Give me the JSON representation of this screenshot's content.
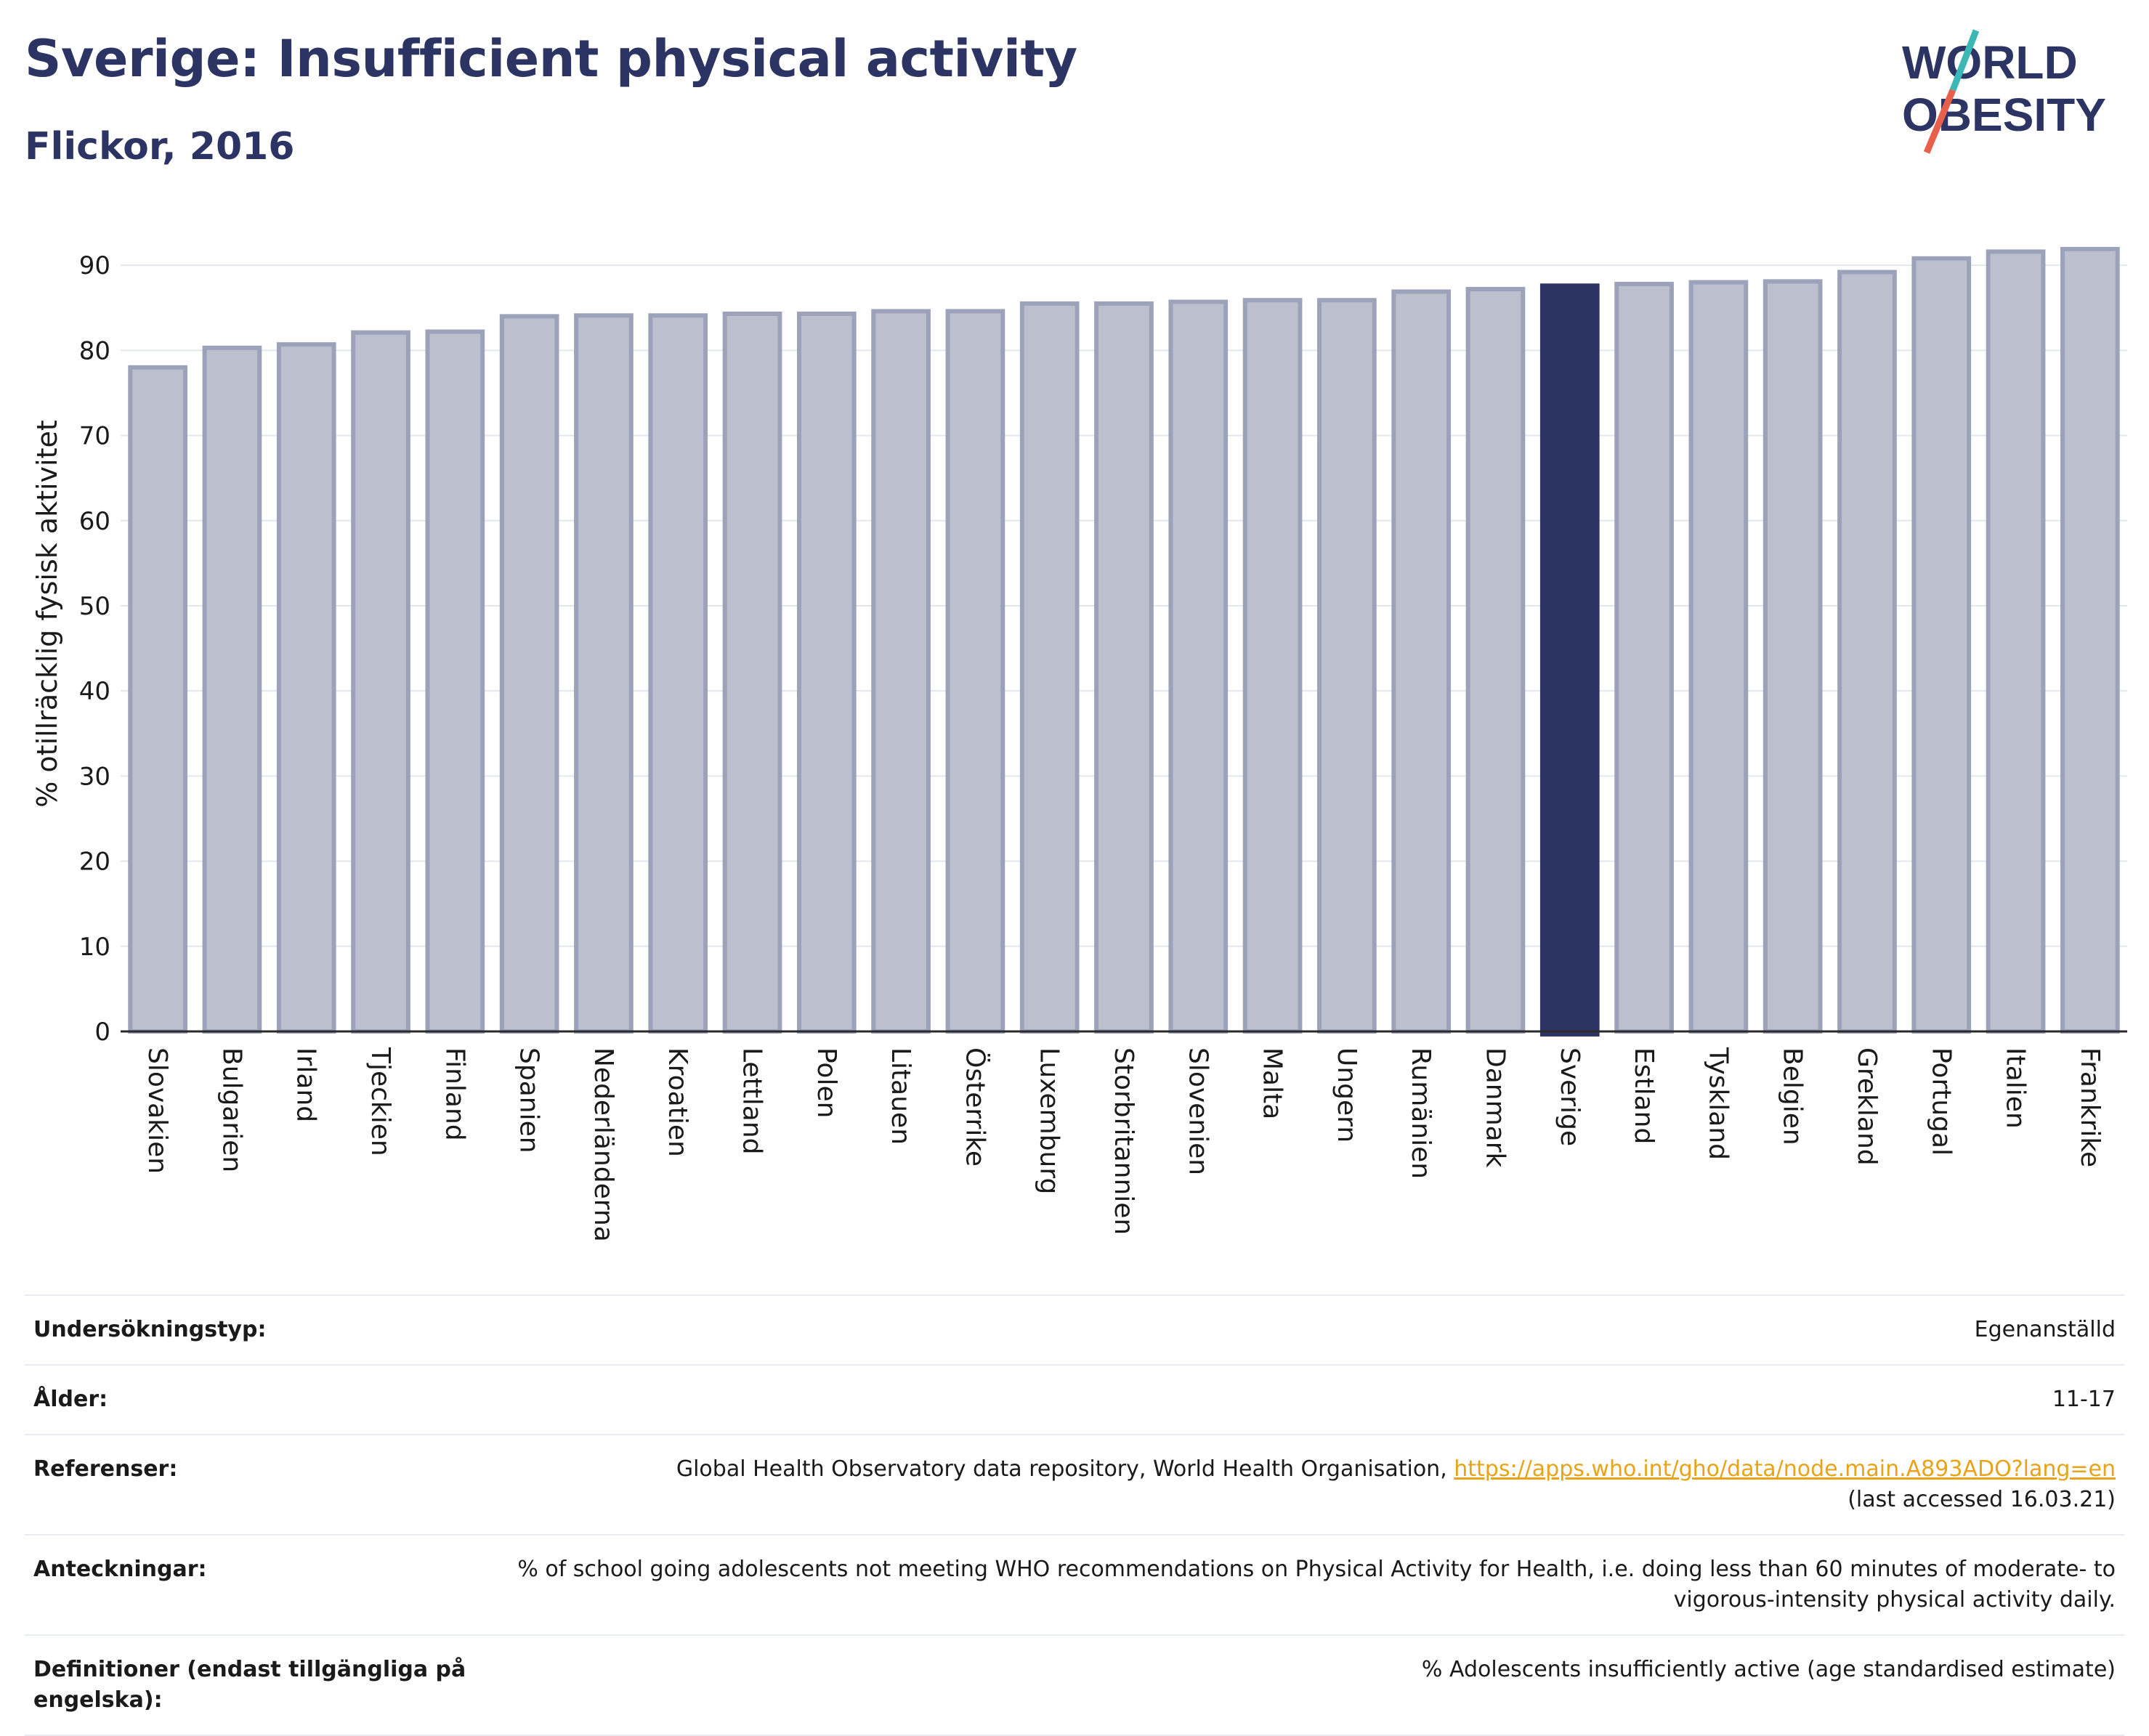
{
  "header": {
    "title": "Sverige: Insufficient physical activity",
    "subtitle": "Flickor, 2016",
    "logo_line1": "WORLD",
    "logo_line2": "OBESITY"
  },
  "colors": {
    "bar": "#bcc0ce",
    "bar_stroke": "#9ca2b9",
    "highlight": "#2b3463",
    "title": "#2b3463",
    "link": "#e8a318",
    "logo_slash_top": "#3bb8b6",
    "logo_slash_bottom": "#e8604c"
  },
  "chart_data": {
    "type": "bar",
    "title": "",
    "xlabel": "",
    "ylabel": "% otillräcklig fysisk aktivitet",
    "ylim": [
      0,
      93
    ],
    "yticks": [
      0,
      10,
      20,
      30,
      40,
      50,
      60,
      70,
      80,
      90
    ],
    "grid": true,
    "highlight": "Sverige",
    "categories": [
      "Slovakien",
      "Bulgarien",
      "Irland",
      "Tjeckien",
      "Finland",
      "Spanien",
      "Nederländerna",
      "Kroatien",
      "Lettland",
      "Polen",
      "Litauen",
      "Österrike",
      "Luxemburg",
      "Storbritannien",
      "Slovenien",
      "Malta",
      "Ungern",
      "Rumänien",
      "Danmark",
      "Sverige",
      "Estland",
      "Tyskland",
      "Belgien",
      "Grekland",
      "Portugal",
      "Italien",
      "Frankrike"
    ],
    "values": [
      78.0,
      80.3,
      80.7,
      82.1,
      82.2,
      84.0,
      84.1,
      84.1,
      84.3,
      84.3,
      84.6,
      84.6,
      85.5,
      85.5,
      85.7,
      85.9,
      85.9,
      86.9,
      87.2,
      87.6,
      87.8,
      88.0,
      88.1,
      89.2,
      90.8,
      91.6,
      91.9
    ]
  },
  "meta": [
    {
      "key": "Undersökningstyp:",
      "value": "Egenanställd"
    },
    {
      "key": "Ålder:",
      "value": "11-17"
    },
    {
      "key": "Referenser:",
      "value": "Global Health Observatory data repository, World Health Organisation, ",
      "link": "https://apps.who.int/gho/data/node.main.A893ADO?lang=en",
      "value2": "(last accessed 16.03.21)"
    },
    {
      "key": "Anteckningar:",
      "value": "% of school going adolescents not meeting WHO recommendations on Physical Activity for Health, i.e. doing less than 60 minutes of moderate- to vigorous-intensity physical activity daily."
    },
    {
      "key": "Definitioner (endast tillgängliga på engelska):",
      "value": "% Adolescents insufficiently active (age standardised estimate)"
    }
  ]
}
